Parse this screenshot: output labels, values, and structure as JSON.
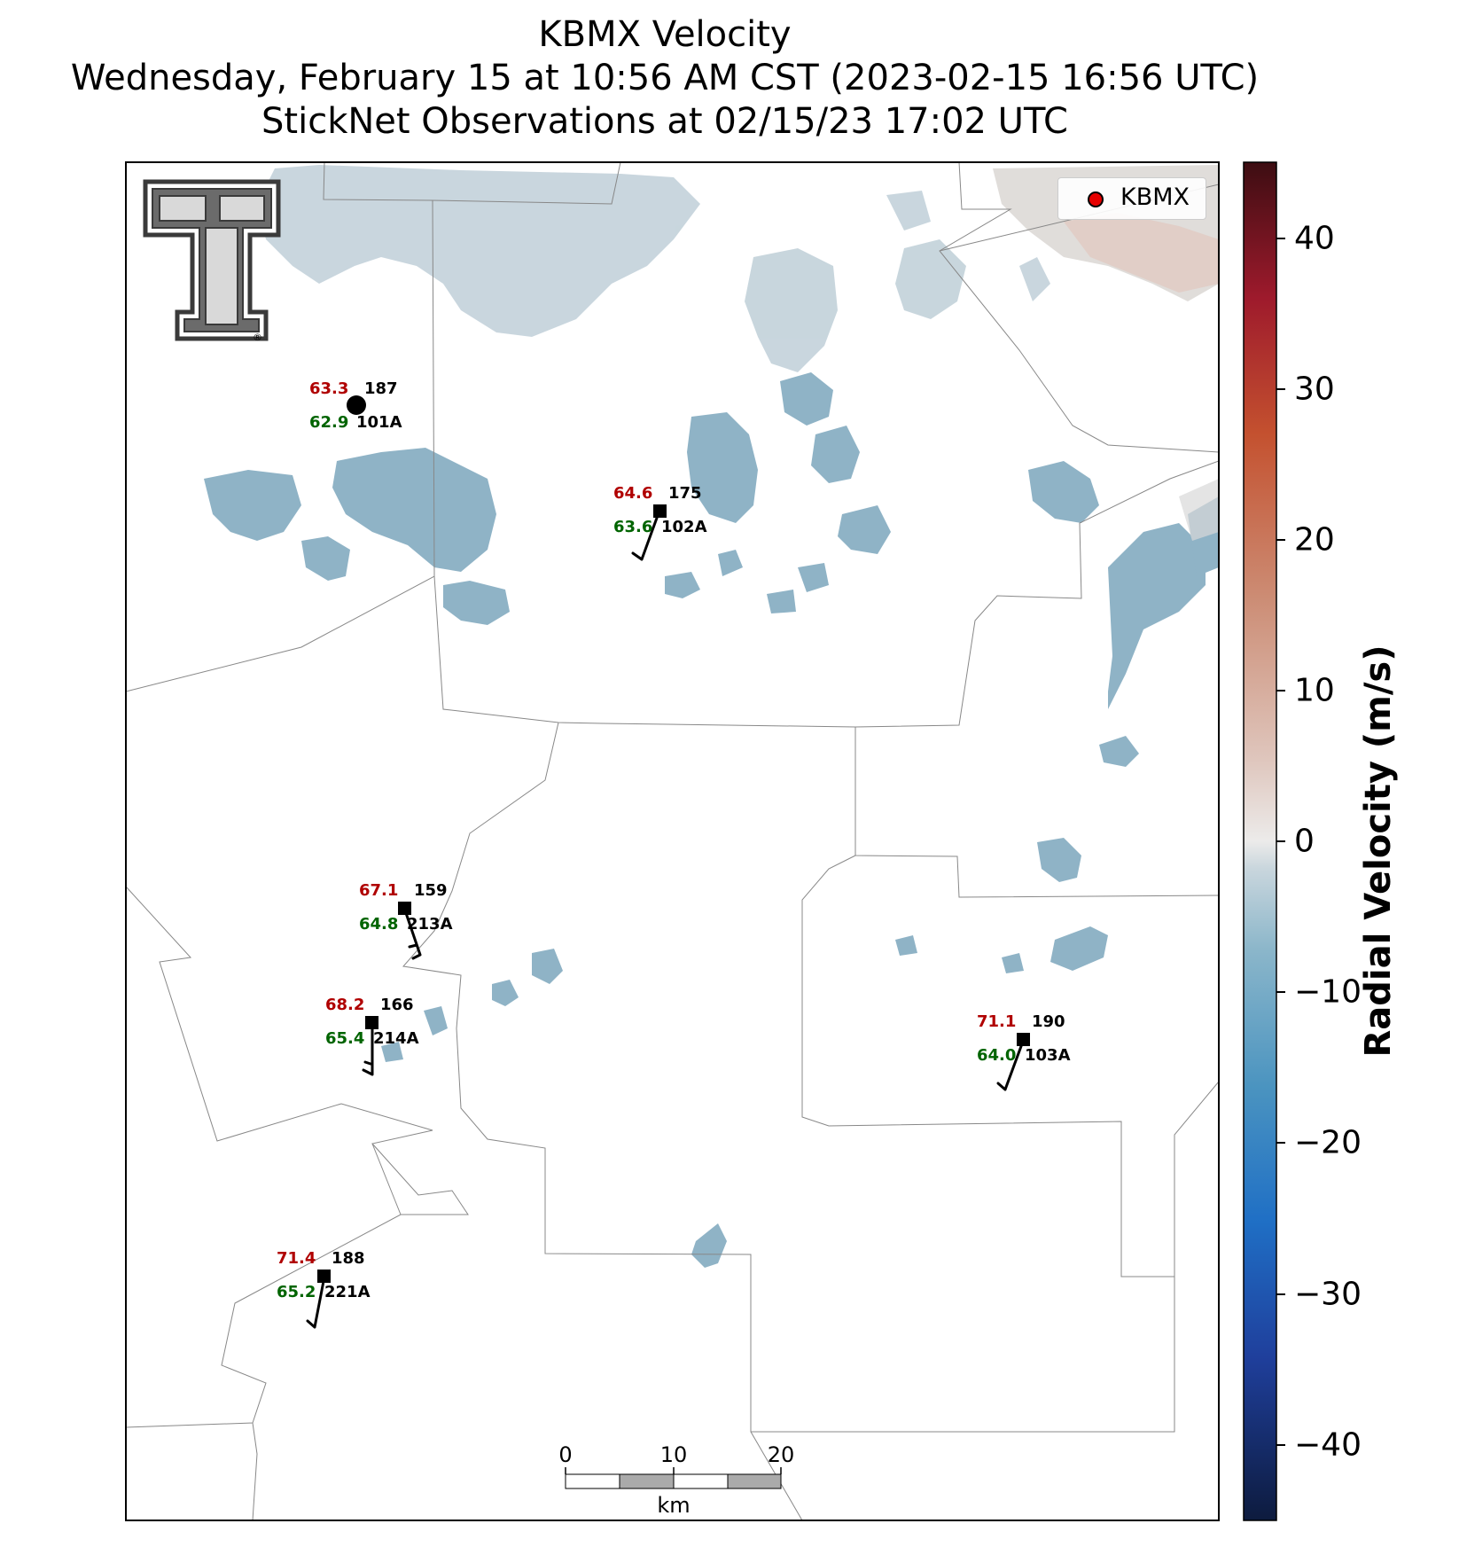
{
  "title": {
    "line1": "KBMX Velocity",
    "line2": "Wednesday, February 15 at 10:56 AM CST (2023-02-15 16:56 UTC)",
    "line3": "StickNet Observations at 02/15/23 17:02 UTC"
  },
  "legend": {
    "label": "KBMX",
    "marker_color": "#e60000"
  },
  "colorbar": {
    "label": "Radial Velocity (m/s)",
    "ticks": [
      "40",
      "30",
      "20",
      "10",
      "0",
      "−10",
      "−20",
      "−30",
      "−40"
    ],
    "colormap": [
      "#0d1b3e",
      "#1f3f9c",
      "#1f6fc5",
      "#4b94c0",
      "#8bb6ca",
      "#c9d6dd",
      "#ecebea",
      "#dfc6bd",
      "#cc8c74",
      "#c4512f",
      "#9e1a2c",
      "#3d0d12"
    ]
  },
  "stations": [
    {
      "id": "101A",
      "temp": "63.3",
      "dew": "62.9",
      "dir": "187",
      "marker": "circle"
    },
    {
      "id": "102A",
      "temp": "64.6",
      "dew": "63.6",
      "dir": "175",
      "marker": "square"
    },
    {
      "id": "213A",
      "temp": "67.1",
      "dew": "64.8",
      "dir": "159",
      "marker": "square"
    },
    {
      "id": "214A",
      "temp": "68.2",
      "dew": "65.4",
      "dir": "166",
      "marker": "square"
    },
    {
      "id": "103A",
      "temp": "71.1",
      "dew": "64.0",
      "dir": "190",
      "marker": "square"
    },
    {
      "id": "221A",
      "temp": "71.4",
      "dew": "65.2",
      "dir": "188",
      "marker": "square"
    }
  ],
  "scalebar": {
    "labels": [
      "0",
      "10",
      "20"
    ],
    "unit": "km"
  },
  "logo": {
    "text": "TT",
    "mark": "®"
  }
}
